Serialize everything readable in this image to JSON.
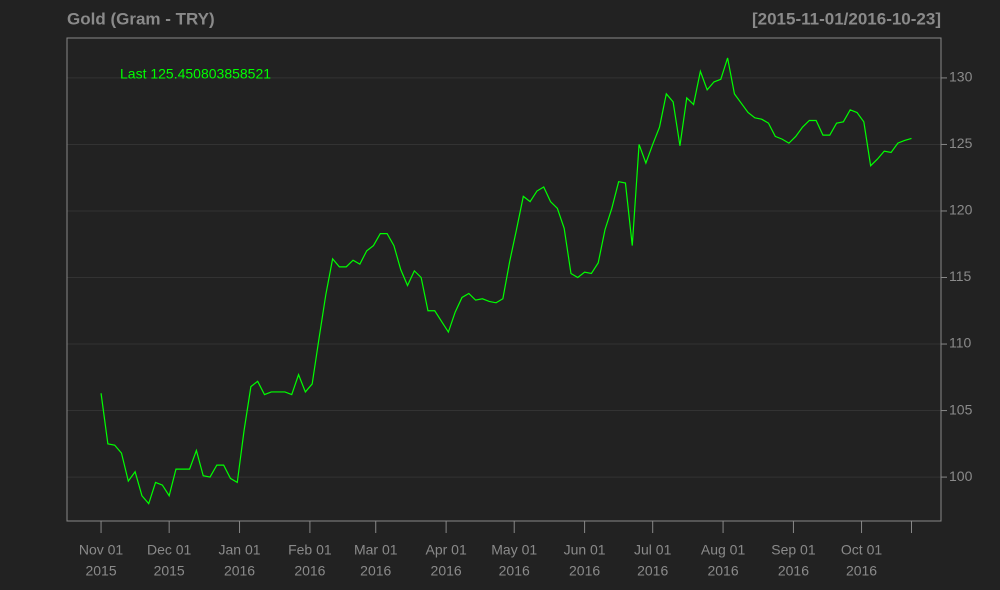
{
  "chart_data": {
    "type": "line",
    "title": "Gold (Gram - TRY)",
    "subtitle": "[2015-11-01/2016-10-23]",
    "annotation": "Last 125.450803858521",
    "color": "#00ff00",
    "grid": true,
    "x": [
      "2015-11-01",
      "2015-11-04",
      "2015-11-07",
      "2015-11-10",
      "2015-11-13",
      "2015-11-16",
      "2015-11-19",
      "2015-11-22",
      "2015-11-25",
      "2015-11-28",
      "2015-12-01",
      "2015-12-04",
      "2015-12-07",
      "2015-12-10",
      "2015-12-13",
      "2015-12-16",
      "2015-12-19",
      "2015-12-22",
      "2015-12-25",
      "2015-12-28",
      "2015-12-31",
      "2016-01-03",
      "2016-01-06",
      "2016-01-09",
      "2016-01-12",
      "2016-01-15",
      "2016-01-18",
      "2016-01-21",
      "2016-01-24",
      "2016-01-27",
      "2016-01-30",
      "2016-02-02",
      "2016-02-05",
      "2016-02-08",
      "2016-02-11",
      "2016-02-14",
      "2016-02-17",
      "2016-02-20",
      "2016-02-23",
      "2016-02-26",
      "2016-02-29",
      "2016-03-03",
      "2016-03-06",
      "2016-03-09",
      "2016-03-12",
      "2016-03-15",
      "2016-03-18",
      "2016-03-21",
      "2016-03-24",
      "2016-03-27",
      "2016-03-30",
      "2016-04-02",
      "2016-04-05",
      "2016-04-08",
      "2016-04-11",
      "2016-04-14",
      "2016-04-17",
      "2016-04-20",
      "2016-04-23",
      "2016-04-26",
      "2016-04-29",
      "2016-05-02",
      "2016-05-05",
      "2016-05-08",
      "2016-05-11",
      "2016-05-14",
      "2016-05-17",
      "2016-05-20",
      "2016-05-23",
      "2016-05-26",
      "2016-05-29",
      "2016-06-01",
      "2016-06-04",
      "2016-06-07",
      "2016-06-10",
      "2016-06-13",
      "2016-06-16",
      "2016-06-19",
      "2016-06-22",
      "2016-06-25",
      "2016-06-28",
      "2016-07-01",
      "2016-07-04",
      "2016-07-07",
      "2016-07-10",
      "2016-07-13",
      "2016-07-16",
      "2016-07-19",
      "2016-07-22",
      "2016-07-25",
      "2016-07-28",
      "2016-07-31",
      "2016-08-03",
      "2016-08-06",
      "2016-08-09",
      "2016-08-12",
      "2016-08-15",
      "2016-08-18",
      "2016-08-21",
      "2016-08-24",
      "2016-08-27",
      "2016-08-30",
      "2016-09-02",
      "2016-09-05",
      "2016-09-08",
      "2016-09-11",
      "2016-09-14",
      "2016-09-17",
      "2016-09-20",
      "2016-09-23",
      "2016-09-26",
      "2016-09-29",
      "2016-10-02",
      "2016-10-05",
      "2016-10-08",
      "2016-10-11",
      "2016-10-14",
      "2016-10-17",
      "2016-10-20",
      "2016-10-23"
    ],
    "values": [
      106.3,
      102.5,
      102.4,
      101.8,
      99.7,
      100.4,
      98.6,
      98.0,
      99.6,
      99.4,
      98.6,
      100.6,
      100.6,
      100.6,
      102.0,
      100.1,
      100.0,
      100.9,
      100.9,
      99.9,
      99.6,
      103.5,
      106.8,
      107.2,
      106.2,
      106.4,
      106.4,
      106.4,
      106.2,
      107.7,
      106.4,
      107.0,
      110.4,
      113.7,
      116.4,
      115.8,
      115.8,
      116.3,
      116.0,
      117.0,
      117.4,
      118.3,
      118.3,
      117.4,
      115.6,
      114.4,
      115.5,
      115.0,
      112.5,
      112.5,
      111.7,
      110.9,
      112.4,
      113.5,
      113.8,
      113.3,
      113.4,
      113.2,
      113.1,
      113.4,
      116.2,
      118.6,
      121.1,
      120.7,
      121.5,
      121.8,
      120.7,
      120.2,
      118.7,
      115.3,
      115.0,
      115.4,
      115.3,
      116.1,
      118.6,
      120.2,
      122.2,
      122.1,
      117.4,
      125.0,
      123.6,
      125.0,
      126.3,
      128.8,
      128.2,
      124.9,
      128.5,
      128.0,
      130.5,
      129.1,
      129.7,
      129.9,
      131.5,
      128.8,
      128.1,
      127.4,
      127.0,
      126.9,
      126.6,
      125.6,
      125.4,
      125.1,
      125.6,
      126.3,
      126.8,
      126.8,
      125.7,
      125.7,
      126.6,
      126.7,
      127.6,
      127.4,
      126.7,
      123.4,
      123.9,
      124.5,
      124.4,
      125.1,
      125.3,
      125.450803858521
    ],
    "xlim": [
      "2015-10-17",
      "2016-11-05"
    ],
    "xticks": [
      {
        "value": "2015-11-01",
        "label": [
          "Nov 01",
          "2015"
        ]
      },
      {
        "value": "2015-12-01",
        "label": [
          "Dec 01",
          "2015"
        ]
      },
      {
        "value": "2016-01-01",
        "label": [
          "Jan 01",
          "2016"
        ]
      },
      {
        "value": "2016-02-01",
        "label": [
          "Feb 01",
          "2016"
        ]
      },
      {
        "value": "2016-03-01",
        "label": [
          "Mar 01",
          "2016"
        ]
      },
      {
        "value": "2016-04-01",
        "label": [
          "Apr 01",
          "2016"
        ]
      },
      {
        "value": "2016-05-01",
        "label": [
          "May 01",
          "2016"
        ]
      },
      {
        "value": "2016-06-01",
        "label": [
          "Jun 01",
          "2016"
        ]
      },
      {
        "value": "2016-07-01",
        "label": [
          "Jul 01",
          "2016"
        ]
      },
      {
        "value": "2016-08-01",
        "label": [
          "Aug 01",
          "2016"
        ]
      },
      {
        "value": "2016-09-01",
        "label": [
          "Sep 01",
          "2016"
        ]
      },
      {
        "value": "2016-10-01",
        "label": [
          "Oct 01",
          "2016"
        ]
      },
      {
        "value": "2016-10-23",
        "label": null
      }
    ],
    "ylim": [
      96.7,
      133.0
    ],
    "yticks": [
      100,
      105,
      110,
      115,
      120,
      125,
      130
    ]
  }
}
